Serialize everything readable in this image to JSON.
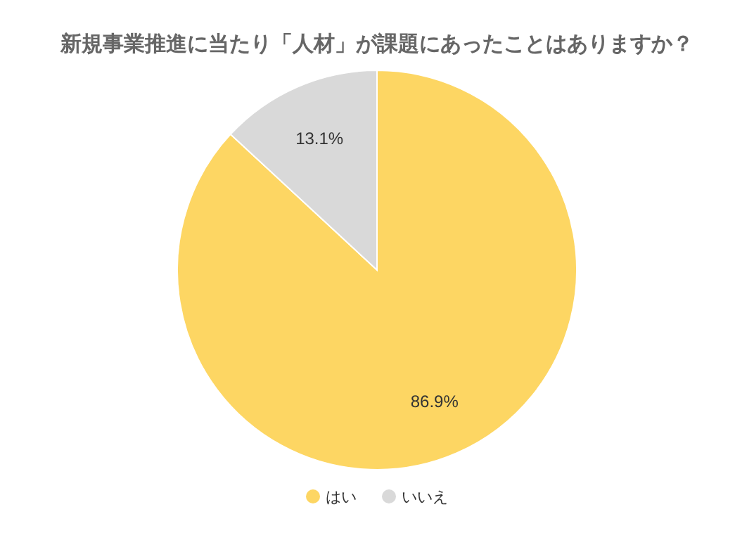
{
  "chart_data": {
    "type": "pie",
    "title": "新規事業推進に当たり「人材」が課題にあったことはありますか？",
    "categories": [
      "はい",
      "いいえ"
    ],
    "values": [
      86.9,
      13.1
    ],
    "colors": [
      "#fdd663",
      "#d9d9d9"
    ],
    "value_labels": [
      "86.9%",
      "13.1%"
    ],
    "legend": "bottom"
  }
}
